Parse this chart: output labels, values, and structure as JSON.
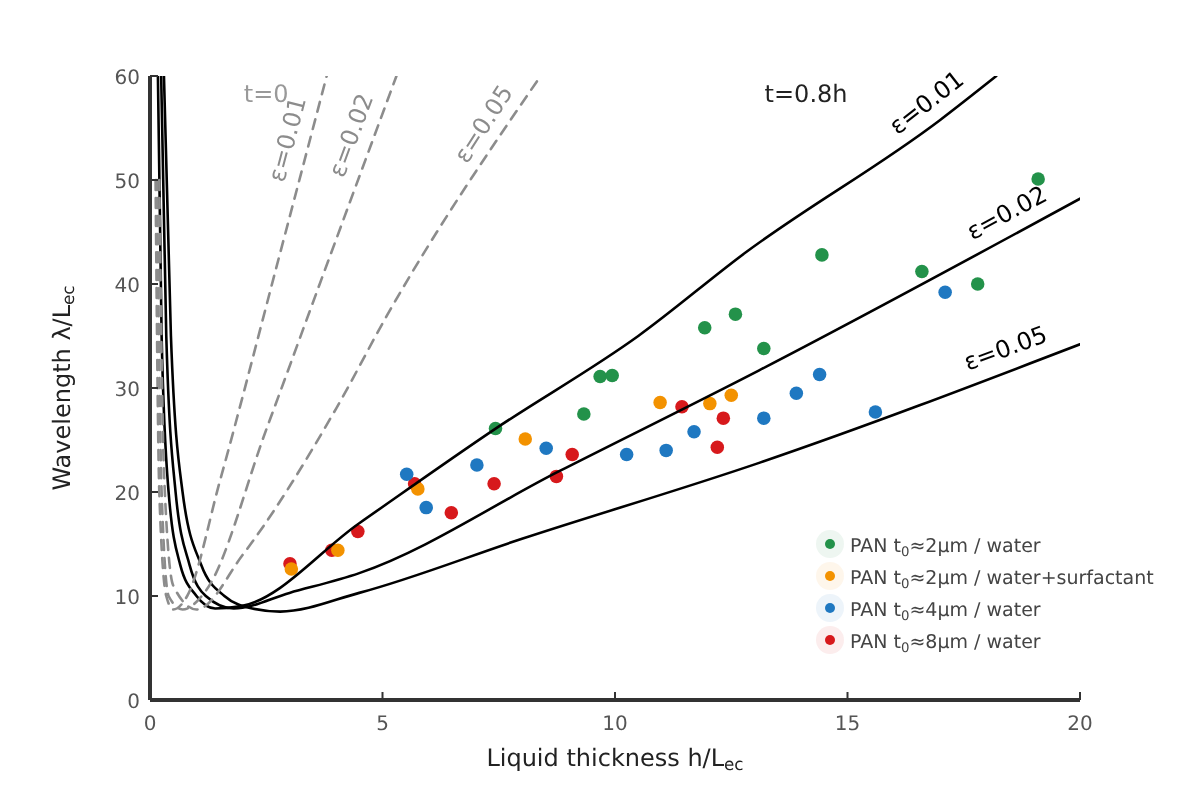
{
  "chart_data": {
    "type": "scatter",
    "xlabel": "Liquid thickness h/L$_{ec}$",
    "ylabel": "Wavelength λ/L$_{ec}$",
    "xlim": [
      0,
      20
    ],
    "ylim": [
      0,
      60
    ],
    "xticks": [
      0,
      5,
      10,
      15,
      20
    ],
    "yticks": [
      0,
      10,
      20,
      30,
      40,
      50,
      60
    ],
    "legend": "bottom right",
    "marker": "circle",
    "grid": false,
    "annotations": [
      "t=0",
      "t=0.8h"
    ],
    "series": [
      {
        "name": "ε=0.01",
        "type": "line",
        "marker": "none",
        "line_style": "dashed",
        "color": "#8c8c8c",
        "x": [
          0.12,
          0.2,
          0.35,
          0.5,
          0.8,
          1.5,
          2.8,
          3.8
        ],
        "values": [
          50,
          20,
          10,
          8.7,
          10,
          21,
          43,
          60
        ]
      },
      {
        "name": "ε=0.02",
        "type": "line",
        "marker": "none",
        "line_style": "dashed",
        "color": "#8c8c8c",
        "x": [
          0.15,
          0.25,
          0.4,
          0.7,
          1.2,
          2.5,
          3.65,
          5.3
        ],
        "values": [
          50,
          20,
          10,
          8.7,
          10.5,
          26,
          40,
          60
        ]
      },
      {
        "name": "ε=0.05",
        "type": "line",
        "marker": "none",
        "line_style": "dashed",
        "color": "#8c8c8c",
        "x": [
          0.2,
          0.3,
          0.5,
          1,
          2,
          4,
          5.1,
          8.4
        ],
        "values": [
          50,
          22,
          11,
          8.7,
          14,
          28,
          37,
          60
        ]
      },
      {
        "name": "ε=0.01",
        "type": "line",
        "marker": "none",
        "line_style": "solid",
        "color": "#000000",
        "x": [
          0.17,
          0.25,
          0.4,
          0.65,
          1,
          1.4,
          1.94,
          4.5,
          7.4,
          10.5,
          12.8,
          17,
          18.2
        ],
        "values": [
          60,
          35,
          20,
          13,
          10,
          8.8,
          9,
          17,
          26,
          35,
          43,
          55.8,
          60
        ]
      },
      {
        "name": "ε=0.02",
        "type": "line",
        "marker": "none",
        "line_style": "solid",
        "color": "#000000",
        "x": [
          0.24,
          0.35,
          0.55,
          0.85,
          1.2,
          1.8,
          3,
          4.5,
          8.8,
          13.1,
          20
        ],
        "values": [
          60,
          35,
          20,
          13,
          10,
          8.8,
          10.3,
          12.2,
          22,
          31.7,
          48.2
        ]
      },
      {
        "name": "ε=0.05",
        "type": "line",
        "marker": "none",
        "line_style": "solid",
        "color": "#000000",
        "x": [
          0.3,
          0.45,
          0.7,
          1.1,
          1.6,
          2.2,
          2.8,
          4.5,
          8,
          13.1,
          20
        ],
        "values": [
          60,
          35,
          20,
          13,
          10,
          8.8,
          8.5,
          10.3,
          15.5,
          22.8,
          34.2
        ]
      },
      {
        "name": "PAN t$_{0}$≈2μm / water",
        "color": "#23924a",
        "x": [
          7.43,
          9.33,
          9.68,
          9.94,
          11.93,
          12.59,
          13.2,
          14.45,
          16.6,
          17.8,
          19.1
        ],
        "values": [
          26.1,
          27.5,
          31.1,
          31.2,
          35.8,
          37.1,
          33.8,
          42.8,
          41.2,
          40,
          50.1
        ]
      },
      {
        "name": "PAN t$_{0}$≈2μm / water+surfactant",
        "color": "#f39200",
        "x": [
          3.04,
          4.04,
          5.76,
          8.07,
          10.97,
          12.04,
          12.5
        ],
        "values": [
          12.6,
          14.4,
          20.3,
          25.1,
          28.6,
          28.5,
          29.3
        ]
      },
      {
        "name": "PAN t$_{0}$≈4μm / water",
        "color": "#1f78c1",
        "x": [
          5.52,
          5.94,
          7.03,
          8.52,
          10.25,
          11.1,
          11.7,
          13.2,
          13.9,
          14.4,
          15.6,
          17.1
        ],
        "values": [
          21.7,
          18.5,
          22.6,
          24.2,
          23.6,
          24,
          25.8,
          27.1,
          29.5,
          31.3,
          27.7,
          39.2
        ]
      },
      {
        "name": "PAN t$_{0}$≈8μm / water",
        "color": "#d7191c",
        "x": [
          3.01,
          3.91,
          4.47,
          5.69,
          6.48,
          7.4,
          8.74,
          9.08,
          11.44,
          12.2,
          12.33
        ],
        "values": [
          13.1,
          14.4,
          16.2,
          20.8,
          18,
          20.8,
          21.5,
          23.6,
          28.2,
          24.3,
          27.1
        ]
      }
    ]
  }
}
